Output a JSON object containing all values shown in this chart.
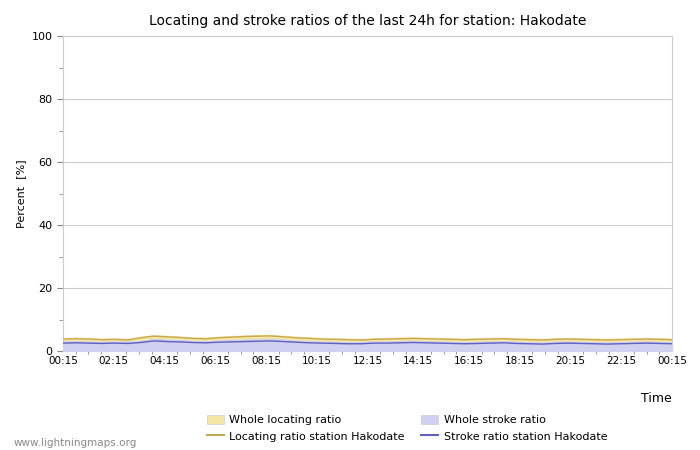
{
  "title": "Locating and stroke ratios of the last 24h for station: Hakodate",
  "xlabel": "Time",
  "ylabel": "Percent  [%]",
  "ylim": [
    0,
    100
  ],
  "yticks": [
    0,
    20,
    40,
    60,
    80,
    100
  ],
  "yticks_minor": [
    10,
    30,
    50,
    70,
    90
  ],
  "x_labels": [
    "00:15",
    "02:15",
    "04:15",
    "06:15",
    "08:15",
    "10:15",
    "12:15",
    "14:15",
    "16:15",
    "18:15",
    "20:15",
    "22:15",
    "00:15"
  ],
  "background_color": "#ffffff",
  "plot_bg_color": "#ffffff",
  "watermark": "www.lightningmaps.org",
  "whole_locating_fill_color": "#f5e6a3",
  "whole_stroke_fill_color": "#d0d0f0",
  "locating_line_color": "#c8a850",
  "stroke_line_color": "#6060c0",
  "whole_locating_ratio": [
    4.0,
    4.2,
    4.1,
    3.9,
    4.0,
    3.8,
    4.5,
    5.0,
    4.8,
    4.6,
    4.3,
    4.2,
    4.5,
    4.7,
    4.9,
    5.0,
    5.1,
    4.8,
    4.5,
    4.3,
    4.1,
    4.0,
    3.9,
    3.8,
    4.0,
    4.1,
    4.2,
    4.3,
    4.2,
    4.1,
    4.0,
    3.9,
    4.0,
    4.1,
    4.2,
    4.0,
    3.9,
    3.8,
    4.0,
    4.1,
    4.0,
    3.9,
    3.8,
    3.9,
    4.0,
    4.1,
    4.0,
    3.9
  ],
  "whole_stroke_ratio": [
    3.0,
    3.1,
    3.0,
    2.9,
    3.0,
    2.9,
    3.2,
    3.8,
    3.6,
    3.5,
    3.2,
    3.1,
    3.3,
    3.5,
    3.6,
    3.7,
    3.8,
    3.6,
    3.3,
    3.1,
    3.0,
    2.9,
    2.8,
    2.8,
    3.0,
    3.0,
    3.1,
    3.2,
    3.1,
    3.0,
    2.9,
    2.8,
    2.9,
    3.0,
    3.1,
    2.9,
    2.8,
    2.7,
    2.9,
    3.0,
    2.9,
    2.8,
    2.7,
    2.8,
    2.9,
    3.0,
    2.9,
    2.8
  ],
  "locating_station_ratio": [
    3.8,
    3.9,
    3.8,
    3.6,
    3.7,
    3.5,
    4.2,
    4.7,
    4.5,
    4.3,
    4.0,
    3.9,
    4.2,
    4.4,
    4.6,
    4.7,
    4.8,
    4.5,
    4.2,
    4.0,
    3.8,
    3.7,
    3.6,
    3.5,
    3.7,
    3.8,
    3.9,
    4.0,
    3.9,
    3.8,
    3.7,
    3.6,
    3.7,
    3.8,
    3.9,
    3.7,
    3.6,
    3.5,
    3.7,
    3.8,
    3.7,
    3.6,
    3.5,
    3.6,
    3.7,
    3.8,
    3.7,
    3.6
  ],
  "stroke_station_ratio": [
    2.5,
    2.6,
    2.5,
    2.4,
    2.5,
    2.4,
    2.7,
    3.2,
    3.0,
    2.9,
    2.7,
    2.6,
    2.8,
    2.9,
    3.0,
    3.1,
    3.2,
    3.0,
    2.8,
    2.6,
    2.5,
    2.4,
    2.3,
    2.3,
    2.5,
    2.5,
    2.6,
    2.7,
    2.6,
    2.5,
    2.4,
    2.3,
    2.4,
    2.5,
    2.6,
    2.4,
    2.3,
    2.2,
    2.4,
    2.5,
    2.4,
    2.3,
    2.2,
    2.3,
    2.4,
    2.5,
    2.4,
    2.3
  ],
  "n_points": 48,
  "legend_order": [
    "whole_locating",
    "locating_station",
    "whole_stroke",
    "stroke_station"
  ]
}
